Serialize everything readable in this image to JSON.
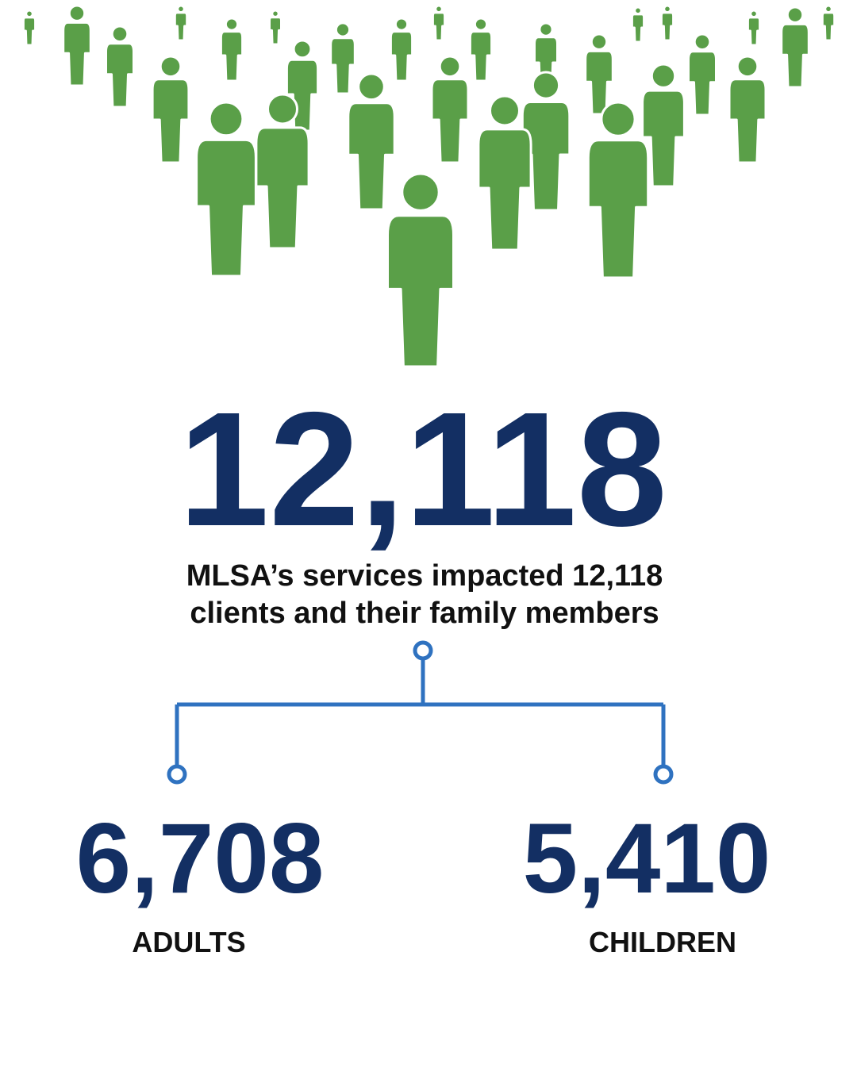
{
  "headline": {
    "value": "12,118"
  },
  "description": [
    "MLSA’s services impacted 12,118",
    "clients and their family members"
  ],
  "breakdown": [
    {
      "value": "6,708",
      "label": "ADULTS"
    },
    {
      "value": "5,410",
      "label": "CHILDREN"
    }
  ]
}
